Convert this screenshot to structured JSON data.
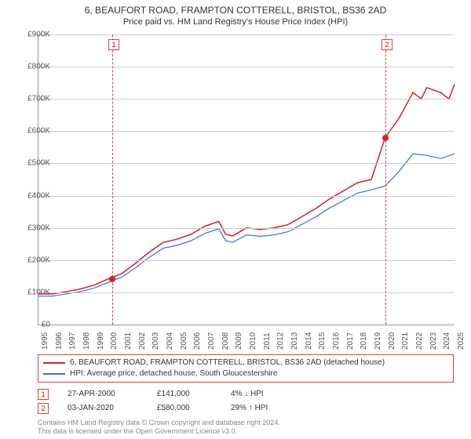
{
  "title": "6, BEAUFORT ROAD, FRAMPTON COTTERELL, BRISTOL, BS36 2AD",
  "subtitle": "Price paid vs. HM Land Registry's House Price Index (HPI)",
  "chart": {
    "type": "line",
    "background_color": "#ffffff",
    "grid_color": "#cccccc",
    "axis_color": "#999999",
    "y": {
      "min": 0,
      "max": 900000,
      "step": 100000,
      "ticks": [
        "£0",
        "£100K",
        "£200K",
        "£300K",
        "£400K",
        "£500K",
        "£600K",
        "£700K",
        "£800K",
        "£900K"
      ]
    },
    "x": {
      "min": 1995,
      "max": 2025,
      "ticks": [
        1995,
        1996,
        1997,
        1998,
        1999,
        2000,
        2001,
        2002,
        2003,
        2004,
        2005,
        2006,
        2007,
        2008,
        2009,
        2010,
        2011,
        2012,
        2013,
        2014,
        2015,
        2016,
        2017,
        2018,
        2019,
        2020,
        2021,
        2022,
        2023,
        2024,
        2025
      ]
    },
    "series": [
      {
        "name": "property",
        "label": "6, BEAUFORT ROAD, FRAMPTON COTTERELL, BRISTOL, BS36 2AD (detached house)",
        "color": "#d62020",
        "width": 1.5,
        "points": [
          [
            1995,
            95000
          ],
          [
            1996,
            95000
          ],
          [
            1997,
            102000
          ],
          [
            1998,
            110000
          ],
          [
            1999,
            122000
          ],
          [
            2000,
            141000
          ],
          [
            2001,
            158000
          ],
          [
            2002,
            190000
          ],
          [
            2003,
            225000
          ],
          [
            2004,
            255000
          ],
          [
            2005,
            265000
          ],
          [
            2006,
            280000
          ],
          [
            2007,
            305000
          ],
          [
            2008,
            320000
          ],
          [
            2008.5,
            280000
          ],
          [
            2009,
            275000
          ],
          [
            2010,
            300000
          ],
          [
            2011,
            295000
          ],
          [
            2012,
            300000
          ],
          [
            2013,
            310000
          ],
          [
            2014,
            335000
          ],
          [
            2015,
            360000
          ],
          [
            2016,
            390000
          ],
          [
            2017,
            415000
          ],
          [
            2018,
            440000
          ],
          [
            2019,
            450000
          ],
          [
            2020,
            580000
          ],
          [
            2021,
            640000
          ],
          [
            2022,
            720000
          ],
          [
            2022.6,
            700000
          ],
          [
            2023,
            735000
          ],
          [
            2024,
            720000
          ],
          [
            2024.6,
            700000
          ],
          [
            2025,
            745000
          ]
        ]
      },
      {
        "name": "hpi",
        "label": "HPI: Average price, detached house, South Gloucestershire",
        "color": "#3a6fd8",
        "width": 1.2,
        "points": [
          [
            1995,
            88000
          ],
          [
            1996,
            88000
          ],
          [
            1997,
            95000
          ],
          [
            1998,
            102000
          ],
          [
            1999,
            113000
          ],
          [
            2000,
            130000
          ],
          [
            2001,
            147000
          ],
          [
            2002,
            176000
          ],
          [
            2003,
            209000
          ],
          [
            2004,
            237000
          ],
          [
            2005,
            246000
          ],
          [
            2006,
            260000
          ],
          [
            2007,
            283000
          ],
          [
            2008,
            297000
          ],
          [
            2008.5,
            260000
          ],
          [
            2009,
            255000
          ],
          [
            2010,
            278000
          ],
          [
            2011,
            274000
          ],
          [
            2012,
            278000
          ],
          [
            2013,
            288000
          ],
          [
            2014,
            311000
          ],
          [
            2015,
            334000
          ],
          [
            2016,
            362000
          ],
          [
            2017,
            385000
          ],
          [
            2018,
            408000
          ],
          [
            2019,
            418000
          ],
          [
            2020,
            430000
          ],
          [
            2021,
            475000
          ],
          [
            2022,
            530000
          ],
          [
            2023,
            525000
          ],
          [
            2024,
            515000
          ],
          [
            2025,
            530000
          ]
        ]
      }
    ],
    "markers": [
      {
        "id": "1",
        "year": 2000.32,
        "value": 141000
      },
      {
        "id": "2",
        "year": 2020.01,
        "value": 580000
      }
    ]
  },
  "legend": {
    "items": [
      {
        "color": "#d62020",
        "label": "6, BEAUFORT ROAD, FRAMPTON COTTERELL, BRISTOL, BS36 2AD (detached house)"
      },
      {
        "color": "#3a6fd8",
        "label": "HPI: Average price, detached house, South Gloucestershire"
      }
    ]
  },
  "sales": [
    {
      "id": "1",
      "date": "27-APR-2000",
      "price": "£141,000",
      "pct": "4% ↓ HPI"
    },
    {
      "id": "2",
      "date": "03-JAN-2020",
      "price": "£580,000",
      "pct": "29% ↑ HPI"
    }
  ],
  "footer": {
    "line1": "Contains HM Land Registry data © Crown copyright and database right 2024.",
    "line2": "This data is licensed under the Open Government Licence v3.0."
  }
}
